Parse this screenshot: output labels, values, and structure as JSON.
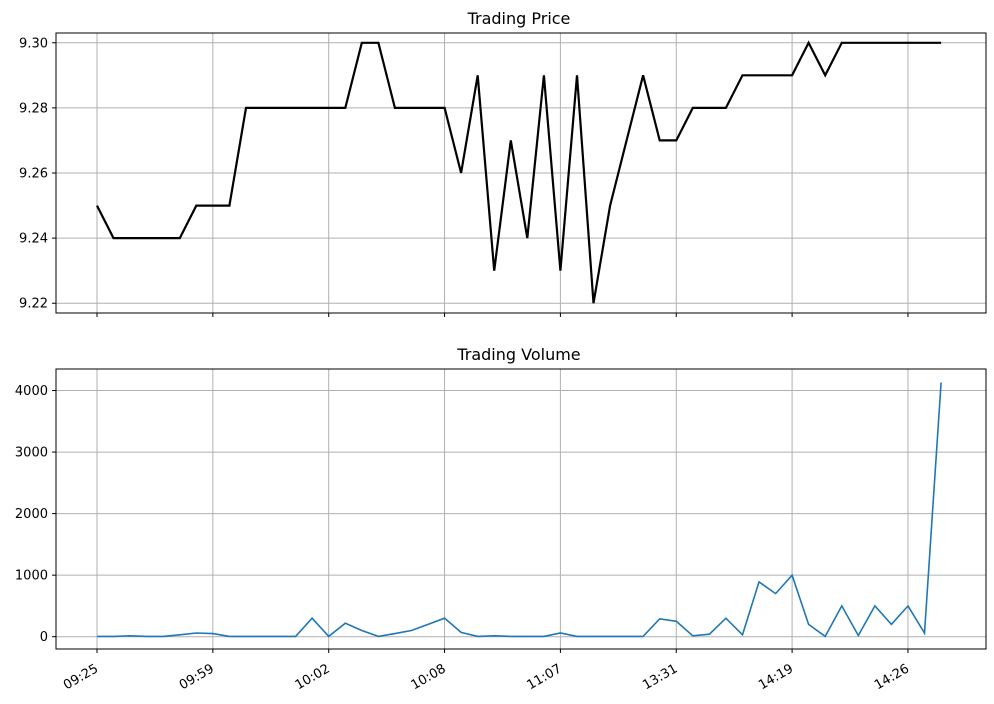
{
  "chart_data": [
    {
      "type": "line",
      "title": "Trading Price",
      "ylim": [
        9.217,
        9.303
      ],
      "yticks": [
        9.22,
        9.24,
        9.26,
        9.28,
        9.3
      ],
      "ytick_labels": [
        "9.22",
        "9.24",
        "9.26",
        "9.28",
        "9.30"
      ],
      "grid": true,
      "line_color": "#000000",
      "series": [
        {
          "values": [
            9.25,
            9.24,
            9.24,
            9.24,
            9.24,
            9.24,
            9.25,
            9.25,
            9.25,
            9.28,
            9.28,
            9.28,
            9.28,
            9.28,
            9.28,
            9.28,
            9.3,
            9.3,
            9.28,
            9.28,
            9.28,
            9.28,
            9.26,
            9.29,
            9.23,
            9.27,
            9.24,
            9.29,
            9.23,
            9.29,
            9.22,
            9.25,
            9.27,
            9.29,
            9.27,
            9.27,
            9.28,
            9.28,
            9.28,
            9.29,
            9.29,
            9.29,
            9.29,
            9.3,
            9.29,
            9.3,
            9.3,
            9.3,
            9.3,
            9.3,
            9.3,
            9.3
          ]
        }
      ]
    },
    {
      "type": "line",
      "title": "Trading Volume",
      "ylim": [
        -200,
        4350
      ],
      "yticks": [
        0,
        1000,
        2000,
        3000,
        4000
      ],
      "ytick_labels": [
        "0",
        "1000",
        "2000",
        "3000",
        "4000"
      ],
      "grid": true,
      "line_color": "#1f77b4",
      "xtick_positions": [
        0,
        7,
        14,
        21,
        28,
        35,
        42,
        49
      ],
      "xtick_labels": [
        "09:25",
        "09:59",
        "10:02",
        "10:08",
        "11:07",
        "13:31",
        "14:19",
        "14:26"
      ],
      "series": [
        {
          "values": [
            5,
            5,
            15,
            5,
            5,
            30,
            60,
            50,
            5,
            5,
            5,
            5,
            5,
            300,
            5,
            220,
            100,
            5,
            50,
            100,
            200,
            300,
            70,
            5,
            15,
            5,
            5,
            5,
            60,
            5,
            5,
            5,
            5,
            5,
            290,
            250,
            15,
            40,
            300,
            30,
            890,
            700,
            1000,
            200,
            5,
            500,
            20,
            500,
            200,
            500,
            60,
            4130
          ]
        }
      ]
    }
  ]
}
